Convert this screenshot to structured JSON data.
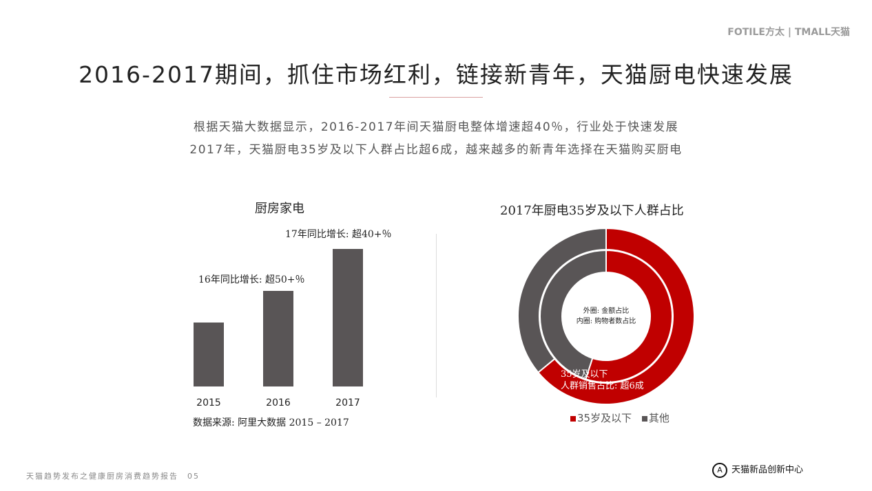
{
  "header": {
    "logo": "FOTILE方太 | TMALL天猫"
  },
  "title": "2016-2017期间，抓住市场红利，链接新青年，天猫厨电快速发展",
  "subtitle": [
    "根据天猫大数据显示，2016-2017年间天猫厨电整体增速超40％，行业处于快速发展",
    "2017年，天猫厨电35岁及以下人群占比超6成，越来越多的新青年选择在天猫购买厨电"
  ],
  "chart_data": [
    {
      "type": "bar",
      "title": "厨房家电",
      "categories": [
        "2015",
        "2016",
        "2017"
      ],
      "values": [
        1.0,
        1.5,
        2.15
      ],
      "annotations": [
        "16年同比增长: 超50+％",
        "17年同比增长: 超40+％"
      ],
      "source": "数据来源: 阿里大数据 2015 – 2017",
      "colors": {
        "bar": "#595556"
      }
    },
    {
      "type": "pie",
      "title": "2017年厨电35岁及以下人群占比",
      "series": [
        {
          "name": "外圈: 金额占比",
          "values": [
            64,
            36
          ]
        },
        {
          "name": "内圈: 购物者数占比",
          "values": [
            55,
            45
          ]
        }
      ],
      "categories": [
        "35岁及以下",
        "其他"
      ],
      "center_text": [
        "外圈: 金额占比",
        "内圈: 购物者数占比"
      ],
      "annotation": [
        "35岁及以下",
        "人群销售占比: 超6成"
      ],
      "legend": "bottom",
      "colors": {
        "35岁及以下": "#c00000",
        "其他": "#595556"
      }
    }
  ],
  "footer": {
    "report": "天猫趋势发布之健康厨房消费趋势报告　05",
    "center": "天猫新品创新中心"
  }
}
